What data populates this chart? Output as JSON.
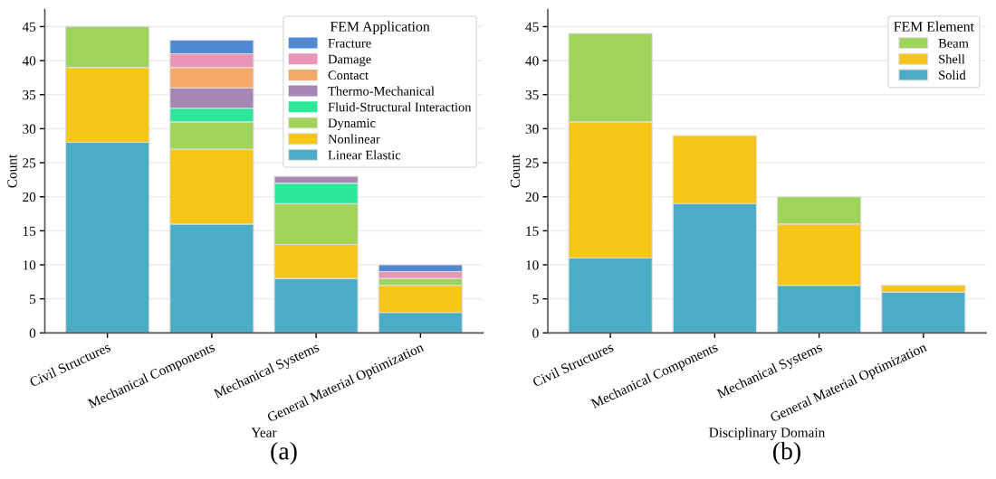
{
  "chart_data": [
    {
      "type": "bar",
      "stacked": true,
      "xlabel": "Year",
      "ylabel": "Count",
      "legend_title": "FEM Application",
      "legend": "top right",
      "grid": "y",
      "categories": [
        "Civil Structures",
        "Mechanical Components",
        "Mechanical Systems",
        "General Material Optimization"
      ],
      "ylim": [
        0,
        47.5
      ],
      "yticks": [
        0,
        5,
        10,
        15,
        20,
        25,
        30,
        35,
        40,
        45
      ],
      "annotations": [
        "(a)"
      ],
      "series": [
        {
          "name": "Linear Elastic",
          "color": "#4bacc6",
          "values": [
            28,
            16,
            8,
            3
          ]
        },
        {
          "name": "Nonlinear",
          "color": "#f5c518",
          "values": [
            11,
            11,
            5,
            4
          ]
        },
        {
          "name": "Dynamic",
          "color": "#a0d35a",
          "values": [
            6,
            4,
            6,
            1
          ]
        },
        {
          "name": "Fluid-Structural Interaction",
          "color": "#2de89a",
          "values": [
            0,
            2,
            3,
            0
          ]
        },
        {
          "name": "Thermo-Mechanical",
          "color": "#a586b4",
          "values": [
            0,
            3,
            1,
            0
          ]
        },
        {
          "name": "Contact",
          "color": "#f4a96a",
          "values": [
            0,
            3,
            0,
            0
          ]
        },
        {
          "name": "Damage",
          "color": "#e995b5",
          "values": [
            0,
            2,
            0,
            1
          ]
        },
        {
          "name": "Fracture",
          "color": "#4f8ad2",
          "values": [
            0,
            2,
            0,
            1
          ]
        }
      ]
    },
    {
      "type": "bar",
      "stacked": true,
      "xlabel": "Disciplinary Domain",
      "ylabel": "Count",
      "legend_title": "FEM Element",
      "legend": "top right",
      "grid": "y",
      "categories": [
        "Civil Structures",
        "Mechanical Components",
        "Mechanical Systems",
        "General Material Optimization"
      ],
      "ylim": [
        0,
        47.5
      ],
      "yticks": [
        0,
        5,
        10,
        15,
        20,
        25,
        30,
        35,
        40,
        45
      ],
      "annotations": [
        "(b)"
      ],
      "series": [
        {
          "name": "Solid",
          "color": "#4bacc6",
          "values": [
            11,
            19,
            7,
            6
          ]
        },
        {
          "name": "Shell",
          "color": "#f5c518",
          "values": [
            20,
            10,
            9,
            1
          ]
        },
        {
          "name": "Beam",
          "color": "#a0d35a",
          "values": [
            13,
            0,
            4,
            0
          ]
        }
      ]
    }
  ]
}
